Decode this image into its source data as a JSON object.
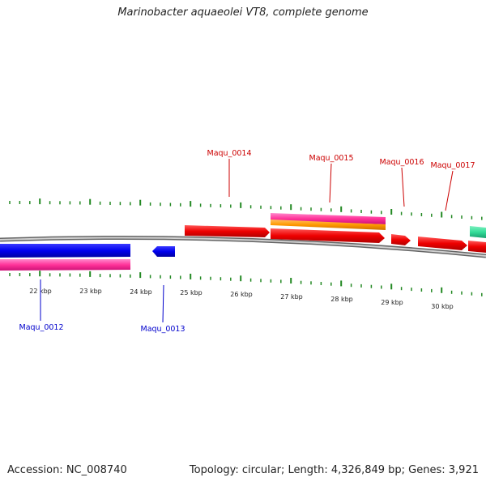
{
  "title": "Marinobacter aquaeolei VT8, complete genome",
  "footer": {
    "accession": "Accession: NC_008740",
    "stats": "Topology: circular; Length: 4,326,849 bp; Genes: 3,921"
  },
  "colors": {
    "forward_label": "#cc0000",
    "reverse_label": "#0000cc",
    "forward_cds": "#ff0000",
    "reverse_cds": "#0000ff",
    "rna": "#ff3399",
    "other": "#ff9900",
    "misc": "#33dd99",
    "ticks": "#228822",
    "backbone": "#888888"
  },
  "scale": {
    "unit": "kbp",
    "labels": [
      "22 kbp",
      "23 kbp",
      "24 kbp",
      "25 kbp",
      "26 kbp",
      "27 kbp",
      "28 kbp",
      "29 kbp",
      "30 kbp"
    ]
  },
  "genes": {
    "forward": [
      "Maqu_0014",
      "Maqu_0015",
      "Maqu_0016",
      "Maqu_0017"
    ],
    "reverse": [
      "Maqu_0012",
      "Maqu_0013"
    ]
  }
}
